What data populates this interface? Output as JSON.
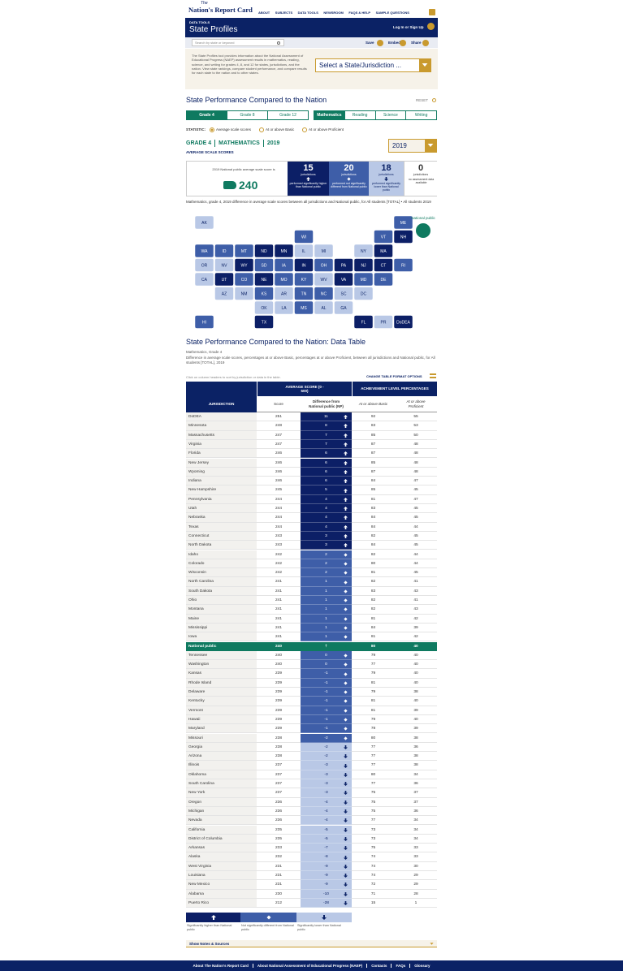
{
  "header": {
    "logo_small": "The",
    "logo": "Nation's Report Card",
    "nav": [
      "ABOUT",
      "SUBJECTS",
      "DATA TOOLS",
      "NEWSROOM",
      "FAQS & HELP",
      "SAMPLE QUESTIONS"
    ],
    "tool_label": "DATA TOOLS",
    "title": "State Profiles",
    "login": "Log In or Sign Up"
  },
  "toolbar": {
    "search_placeholder": "Search by state or keyword",
    "save": "Save",
    "embed": "Embed",
    "share": "Share"
  },
  "intro": {
    "text": "The State Profiles tool provides information about the National Assessment of Educational Progress (NAEP) assessment results in mathematics, reading, science, and writing for grades 4, 8, and 12 for states, jurisdictions, and the nation. View state rankings, compare student performance, and compare results for each state to the nation and to other states.",
    "select_placeholder": "Select a State/Jurisdiction ..."
  },
  "colors": {
    "higher": "#0c1f66",
    "not_different": "#3e5ea8",
    "lower": "#b9c8e6",
    "national": "#0f7a60",
    "none": "#ffffff"
  },
  "comparison": {
    "title": "State Performance Compared to the Nation",
    "reset": "RESET",
    "grades": [
      "Grade 4",
      "Grade 8",
      "Grade 12"
    ],
    "active_grade": 0,
    "subjects": [
      "Mathematics",
      "Reading",
      "Science",
      "Writing"
    ],
    "active_subject": 0,
    "statistic_label": "STATISTIC:",
    "statistics": [
      "Average scale scores",
      "At or above Basic",
      "At or above Proficient"
    ],
    "active_statistic": 0,
    "grade": "GRADE 4",
    "subject": "MATHEMATICS",
    "year": "2019",
    "measure": "AVERAGE SCALE SCORES",
    "year_select": "2019"
  },
  "summary": {
    "national_text": "2019 National public average scale score is",
    "national_score": 240,
    "groups": [
      {
        "count": 15,
        "unit": "jurisdictions",
        "description": "performed significantly higher than National public",
        "status": "higher"
      },
      {
        "count": 20,
        "unit": "jurisdictions",
        "description": "performed not significantly different from National public",
        "status": "not_different"
      },
      {
        "count": 18,
        "unit": "jurisdictions",
        "description": "performed significantly lower than National public",
        "status": "lower"
      },
      {
        "count": 0,
        "unit": "jurisdictions",
        "description": "no assessment data available",
        "status": "none"
      }
    ]
  },
  "map": {
    "caption": "Mathematics, grade 4, 2019 difference in average scale scores between all jurisdictions and National public, for All students [TOTAL] • All students 2019",
    "national_label": "National public",
    "states": [
      {
        "abbr": "AK",
        "status": "lower"
      },
      {
        "abbr": "ME",
        "status": "not_different"
      },
      {
        "abbr": "WI",
        "status": "not_different"
      },
      {
        "abbr": "VT",
        "status": "not_different"
      },
      {
        "abbr": "NH",
        "status": "higher"
      },
      {
        "abbr": "WA",
        "status": "not_different"
      },
      {
        "abbr": "ID",
        "status": "not_different"
      },
      {
        "abbr": "MT",
        "status": "not_different"
      },
      {
        "abbr": "ND",
        "status": "higher"
      },
      {
        "abbr": "MN",
        "status": "higher"
      },
      {
        "abbr": "IL",
        "status": "lower"
      },
      {
        "abbr": "MI",
        "status": "lower"
      },
      {
        "abbr": "NY",
        "status": "lower"
      },
      {
        "abbr": "MA",
        "status": "higher"
      },
      {
        "abbr": "OR",
        "status": "lower"
      },
      {
        "abbr": "NV",
        "status": "lower"
      },
      {
        "abbr": "WY",
        "status": "higher"
      },
      {
        "abbr": "SD",
        "status": "not_different"
      },
      {
        "abbr": "IA",
        "status": "not_different"
      },
      {
        "abbr": "IN",
        "status": "higher"
      },
      {
        "abbr": "OH",
        "status": "not_different"
      },
      {
        "abbr": "PA",
        "status": "higher"
      },
      {
        "abbr": "NJ",
        "status": "higher"
      },
      {
        "abbr": "CT",
        "status": "higher"
      },
      {
        "abbr": "RI",
        "status": "not_different"
      },
      {
        "abbr": "CA",
        "status": "lower"
      },
      {
        "abbr": "UT",
        "status": "higher"
      },
      {
        "abbr": "CO",
        "status": "not_different"
      },
      {
        "abbr": "NE",
        "status": "higher"
      },
      {
        "abbr": "MO",
        "status": "not_different"
      },
      {
        "abbr": "KY",
        "status": "not_different"
      },
      {
        "abbr": "WV",
        "status": "lower"
      },
      {
        "abbr": "VA",
        "status": "higher"
      },
      {
        "abbr": "MD",
        "status": "not_different"
      },
      {
        "abbr": "DE",
        "status": "not_different"
      },
      {
        "abbr": "AZ",
        "status": "lower"
      },
      {
        "abbr": "NM",
        "status": "lower"
      },
      {
        "abbr": "KS",
        "status": "not_different"
      },
      {
        "abbr": "AR",
        "status": "lower"
      },
      {
        "abbr": "TN",
        "status": "not_different"
      },
      {
        "abbr": "NC",
        "status": "not_different"
      },
      {
        "abbr": "SC",
        "status": "lower"
      },
      {
        "abbr": "DC",
        "status": "lower"
      },
      {
        "abbr": "OK",
        "status": "lower"
      },
      {
        "abbr": "LA",
        "status": "lower"
      },
      {
        "abbr": "MS",
        "status": "not_different"
      },
      {
        "abbr": "AL",
        "status": "lower"
      },
      {
        "abbr": "GA",
        "status": "lower"
      },
      {
        "abbr": "HI",
        "status": "not_different"
      },
      {
        "abbr": "TX",
        "status": "higher"
      },
      {
        "abbr": "FL",
        "status": "higher"
      },
      {
        "abbr": "PR",
        "status": "lower"
      },
      {
        "abbr": "DoDEA",
        "status": "higher"
      }
    ]
  },
  "table": {
    "title": "State Performance Compared to the Nation: Data Table",
    "subject_line": "Mathematics, Grade 4",
    "description": "Difference in average scale scores, percentages at or above Basic, percentages at or above Proficient, between all jurisdictions and National public, for All students [TOTAL], 2019",
    "sort_hint": "Click on column headers to sort by jurisdiction or data in the table.",
    "format_options": "CHANGE TABLE FORMAT OPTIONS",
    "headers": {
      "jurisdiction": "JURISDICTION",
      "average_score": "AVERAGE SCORE (0 - 500)",
      "score": "Score",
      "difference": "Difference from National public (NP)",
      "achievement": "ACHIEVEMENT LEVEL PERCENTAGES",
      "basic": "At or above Basic",
      "proficient": "At or above Proficient"
    },
    "rows": [
      {
        "jurisdiction": "DoDEA",
        "score": 251,
        "difference": 11,
        "basic": 92,
        "proficient": 55,
        "status": "higher"
      },
      {
        "jurisdiction": "Minnesota",
        "score": 248,
        "difference": 8,
        "basic": 83,
        "proficient": 53,
        "status": "higher"
      },
      {
        "jurisdiction": "Massachusetts",
        "score": 247,
        "difference": 7,
        "basic": 85,
        "proficient": 50,
        "status": "higher"
      },
      {
        "jurisdiction": "Virginia",
        "score": 247,
        "difference": 7,
        "basic": 87,
        "proficient": 48,
        "status": "higher"
      },
      {
        "jurisdiction": "Florida",
        "score": 246,
        "difference": 6,
        "basic": 87,
        "proficient": 48,
        "status": "higher"
      },
      {
        "jurisdiction": "New Jersey",
        "score": 246,
        "difference": 6,
        "basic": 85,
        "proficient": 48,
        "status": "higher"
      },
      {
        "jurisdiction": "Wyoming",
        "score": 246,
        "difference": 6,
        "basic": 87,
        "proficient": 48,
        "status": "higher"
      },
      {
        "jurisdiction": "Indiana",
        "score": 246,
        "difference": 6,
        "basic": 84,
        "proficient": 47,
        "status": "higher"
      },
      {
        "jurisdiction": "New Hampshire",
        "score": 245,
        "difference": 5,
        "basic": 85,
        "proficient": 45,
        "status": "higher"
      },
      {
        "jurisdiction": "Pennsylvania",
        "score": 244,
        "difference": 4,
        "basic": 81,
        "proficient": 47,
        "status": "higher"
      },
      {
        "jurisdiction": "Utah",
        "score": 244,
        "difference": 4,
        "basic": 83,
        "proficient": 45,
        "status": "higher"
      },
      {
        "jurisdiction": "Nebraska",
        "score": 244,
        "difference": 4,
        "basic": 84,
        "proficient": 45,
        "status": "higher"
      },
      {
        "jurisdiction": "Texas",
        "score": 244,
        "difference": 4,
        "basic": 84,
        "proficient": 44,
        "status": "higher"
      },
      {
        "jurisdiction": "Connecticut",
        "score": 243,
        "difference": 3,
        "basic": 82,
        "proficient": 45,
        "status": "higher"
      },
      {
        "jurisdiction": "North Dakota",
        "score": 243,
        "difference": 3,
        "basic": 84,
        "proficient": 45,
        "status": "higher"
      },
      {
        "jurisdiction": "Idaho",
        "score": 242,
        "difference": 2,
        "basic": 82,
        "proficient": 44,
        "status": "not_different"
      },
      {
        "jurisdiction": "Colorado",
        "score": 242,
        "difference": 2,
        "basic": 80,
        "proficient": 44,
        "status": "not_different"
      },
      {
        "jurisdiction": "Wisconsin",
        "score": 242,
        "difference": 2,
        "basic": 81,
        "proficient": 45,
        "status": "not_different"
      },
      {
        "jurisdiction": "North Carolina",
        "score": 241,
        "difference": 1,
        "basic": 82,
        "proficient": 41,
        "status": "not_different"
      },
      {
        "jurisdiction": "South Dakota",
        "score": 241,
        "difference": 1,
        "basic": 83,
        "proficient": 43,
        "status": "not_different"
      },
      {
        "jurisdiction": "Ohio",
        "score": 241,
        "difference": 1,
        "basic": 82,
        "proficient": 41,
        "status": "not_different"
      },
      {
        "jurisdiction": "Montana",
        "score": 241,
        "difference": 1,
        "basic": 82,
        "proficient": 43,
        "status": "not_different"
      },
      {
        "jurisdiction": "Maine",
        "score": 241,
        "difference": 1,
        "basic": 81,
        "proficient": 42,
        "status": "not_different"
      },
      {
        "jurisdiction": "Mississippi",
        "score": 241,
        "difference": 1,
        "basic": 84,
        "proficient": 39,
        "status": "not_different"
      },
      {
        "jurisdiction": "Iowa",
        "score": 241,
        "difference": 1,
        "basic": 81,
        "proficient": 42,
        "status": "not_different"
      },
      {
        "jurisdiction": "National public",
        "score": 240,
        "difference": "†",
        "basic": 80,
        "proficient": 40,
        "status": "national"
      },
      {
        "jurisdiction": "Tennessee",
        "score": 240,
        "difference": 0,
        "basic": 79,
        "proficient": 40,
        "status": "not_different"
      },
      {
        "jurisdiction": "Washington",
        "score": 240,
        "difference": 0,
        "basic": 77,
        "proficient": 40,
        "status": "not_different"
      },
      {
        "jurisdiction": "Kansas",
        "score": 239,
        "difference": -1,
        "basic": 79,
        "proficient": 40,
        "status": "not_different"
      },
      {
        "jurisdiction": "Rhode Island",
        "score": 239,
        "difference": -1,
        "basic": 81,
        "proficient": 40,
        "status": "not_different"
      },
      {
        "jurisdiction": "Delaware",
        "score": 239,
        "difference": -1,
        "basic": 79,
        "proficient": 38,
        "status": "not_different"
      },
      {
        "jurisdiction": "Kentucky",
        "score": 239,
        "difference": -1,
        "basic": 81,
        "proficient": 40,
        "status": "not_different"
      },
      {
        "jurisdiction": "Vermont",
        "score": 239,
        "difference": -1,
        "basic": 81,
        "proficient": 39,
        "status": "not_different"
      },
      {
        "jurisdiction": "Hawaii",
        "score": 239,
        "difference": -1,
        "basic": 79,
        "proficient": 40,
        "status": "not_different"
      },
      {
        "jurisdiction": "Maryland",
        "score": 239,
        "difference": -1,
        "basic": 78,
        "proficient": 39,
        "status": "not_different"
      },
      {
        "jurisdiction": "Missouri",
        "score": 238,
        "difference": -2,
        "basic": 80,
        "proficient": 38,
        "status": "not_different"
      },
      {
        "jurisdiction": "Georgia",
        "score": 238,
        "difference": -2,
        "basic": 77,
        "proficient": 36,
        "status": "lower"
      },
      {
        "jurisdiction": "Arizona",
        "score": 238,
        "difference": -2,
        "basic": 77,
        "proficient": 38,
        "status": "lower"
      },
      {
        "jurisdiction": "Illinois",
        "score": 237,
        "difference": -3,
        "basic": 77,
        "proficient": 38,
        "status": "lower"
      },
      {
        "jurisdiction": "Oklahoma",
        "score": 237,
        "difference": -3,
        "basic": 80,
        "proficient": 34,
        "status": "lower"
      },
      {
        "jurisdiction": "South Carolina",
        "score": 237,
        "difference": -3,
        "basic": 77,
        "proficient": 36,
        "status": "lower"
      },
      {
        "jurisdiction": "New York",
        "score": 237,
        "difference": -3,
        "basic": 75,
        "proficient": 37,
        "status": "lower"
      },
      {
        "jurisdiction": "Oregon",
        "score": 236,
        "difference": -4,
        "basic": 75,
        "proficient": 37,
        "status": "lower"
      },
      {
        "jurisdiction": "Michigan",
        "score": 236,
        "difference": -4,
        "basic": 75,
        "proficient": 36,
        "status": "lower"
      },
      {
        "jurisdiction": "Nevada",
        "score": 236,
        "difference": -4,
        "basic": 77,
        "proficient": 34,
        "status": "lower"
      },
      {
        "jurisdiction": "California",
        "score": 235,
        "difference": -5,
        "basic": 73,
        "proficient": 34,
        "status": "lower"
      },
      {
        "jurisdiction": "District of Columbia",
        "score": 235,
        "difference": -5,
        "basic": 73,
        "proficient": 34,
        "status": "lower"
      },
      {
        "jurisdiction": "Arkansas",
        "score": 233,
        "difference": -7,
        "basic": 75,
        "proficient": 33,
        "status": "lower"
      },
      {
        "jurisdiction": "Alaska",
        "score": 232,
        "difference": -8,
        "basic": 74,
        "proficient": 33,
        "status": "lower"
      },
      {
        "jurisdiction": "West Virginia",
        "score": 231,
        "difference": -9,
        "basic": 74,
        "proficient": 30,
        "status": "lower"
      },
      {
        "jurisdiction": "Louisiana",
        "score": 231,
        "difference": -9,
        "basic": 74,
        "proficient": 29,
        "status": "lower"
      },
      {
        "jurisdiction": "New Mexico",
        "score": 231,
        "difference": -9,
        "basic": 72,
        "proficient": 29,
        "status": "lower"
      },
      {
        "jurisdiction": "Alabama",
        "score": 230,
        "difference": -10,
        "basic": 71,
        "proficient": 28,
        "status": "lower"
      },
      {
        "jurisdiction": "Puerto Rico",
        "score": 212,
        "difference": -28,
        "basic": 15,
        "proficient": 1,
        "status": "lower"
      }
    ]
  },
  "legend": [
    {
      "text": "Significantly higher than National public",
      "status": "higher"
    },
    {
      "text": "Not significantly different from National public",
      "status": "not_different"
    },
    {
      "text": "Significantly lower than National public",
      "status": "lower"
    }
  ],
  "notes": "Show Notes & Sources",
  "footer": {
    "links": [
      "About The Nation's Report Card",
      "About National Assessment of Educational Progress (NAEP)",
      "Contacts",
      "FAQs",
      "Glossary"
    ]
  }
}
